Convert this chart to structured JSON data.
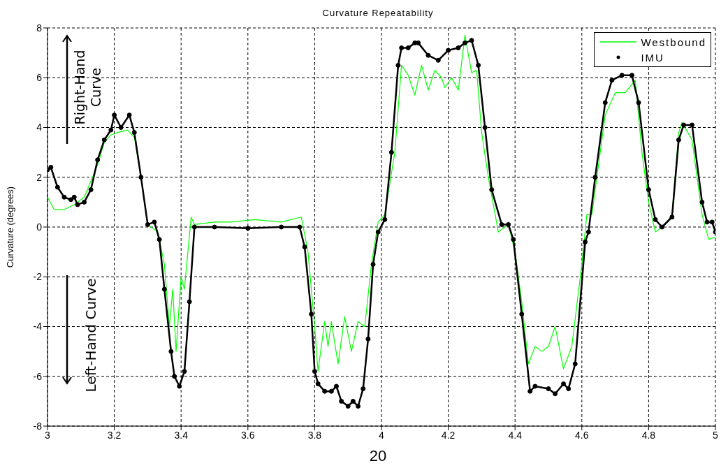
{
  "chart_data": {
    "type": "line",
    "title": "Curvature Repeatability",
    "ylabel": "Curvature (degrees)",
    "xlim": [
      3,
      5
    ],
    "xticks": [
      3,
      3.2,
      3.4,
      3.6,
      3.8,
      4,
      4.2,
      4.4,
      4.6,
      4.8,
      5
    ],
    "ylim": [
      -8,
      8
    ],
    "yticks": [
      -8,
      -6,
      -4,
      -2,
      0,
      2,
      4,
      6,
      8
    ],
    "grid": true,
    "legend": "top right",
    "line_style": "solid",
    "annotations": [
      "Right-Hand Curve",
      "Left-Hand Curve",
      "20"
    ],
    "series": [
      {
        "name": "Westbound",
        "color": "#00ff00",
        "marker": "none",
        "x": [
          3,
          3.02,
          3.05,
          3.08,
          3.11,
          3.15,
          3.17,
          3.19,
          3.21,
          3.24,
          3.26,
          3.28,
          3.3,
          3.33,
          3.35,
          3.365,
          3.375,
          3.385,
          3.4,
          3.41,
          3.43,
          3.44,
          3.5,
          3.55,
          3.62,
          3.7,
          3.76,
          3.78,
          3.8,
          3.81,
          3.83,
          3.84,
          3.85,
          3.87,
          3.89,
          3.91,
          3.93,
          3.95,
          3.97,
          3.99,
          4.01,
          4.04,
          4.06,
          4.08,
          4.1,
          4.12,
          4.14,
          4.16,
          4.18,
          4.19,
          4.21,
          4.23,
          4.25,
          4.27,
          4.285,
          4.3,
          4.32,
          4.35,
          4.38,
          4.4,
          4.42,
          4.44,
          4.46,
          4.48,
          4.5,
          4.52,
          4.545,
          4.57,
          4.6,
          4.615,
          4.63,
          4.67,
          4.7,
          4.73,
          4.76,
          4.78,
          4.8,
          4.82,
          4.85,
          4.87,
          4.89,
          4.9,
          4.93,
          4.96,
          4.98,
          5
        ],
        "values": [
          1.2,
          0.7,
          0.7,
          0.9,
          1.2,
          2.5,
          3.4,
          3.7,
          3.8,
          3.9,
          3.6,
          2,
          0.1,
          -0.2,
          -1.5,
          -4,
          -2.5,
          -5,
          -2,
          -2.5,
          0.4,
          0.1,
          0.2,
          0.2,
          0.3,
          0.2,
          0.4,
          -1,
          -4,
          -5.8,
          -3.8,
          -4.8,
          -3.8,
          -5.5,
          -3.6,
          -5,
          -3.8,
          -4,
          -1.5,
          0.2,
          0.5,
          3,
          6.5,
          6.1,
          5.3,
          6.5,
          5.5,
          6.3,
          6,
          5.6,
          6,
          5.5,
          7.7,
          6.2,
          6.3,
          3.8,
          2,
          -0.2,
          0.1,
          -1,
          -3,
          -5.5,
          -4.8,
          -5,
          -4.8,
          -4,
          -5.7,
          -4.8,
          -1.5,
          0.5,
          0.5,
          4.5,
          5.4,
          5.4,
          5.9,
          3,
          1,
          -0.2,
          0.1,
          0.5,
          3.8,
          4.2,
          3.5,
          0.5,
          -0.5,
          -0.4
        ]
      },
      {
        "name": "IMU",
        "color": "#000000",
        "marker": "circle",
        "x": [
          3,
          3.01,
          3.03,
          3.05,
          3.07,
          3.08,
          3.09,
          3.11,
          3.13,
          3.15,
          3.17,
          3.19,
          3.2,
          3.22,
          3.245,
          3.26,
          3.28,
          3.3,
          3.32,
          3.335,
          3.35,
          3.37,
          3.38,
          3.395,
          3.41,
          3.425,
          3.44,
          3.5,
          3.6,
          3.7,
          3.755,
          3.77,
          3.79,
          3.8,
          3.81,
          3.83,
          3.85,
          3.865,
          3.88,
          3.9,
          3.915,
          3.93,
          3.945,
          3.96,
          3.975,
          3.99,
          4.01,
          4.03,
          4.05,
          4.06,
          4.08,
          4.1,
          4.11,
          4.14,
          4.17,
          4.2,
          4.23,
          4.25,
          4.27,
          4.29,
          4.31,
          4.33,
          4.36,
          4.38,
          4.395,
          4.42,
          4.445,
          4.46,
          4.5,
          4.52,
          4.545,
          4.56,
          4.58,
          4.61,
          4.62,
          4.64,
          4.67,
          4.69,
          4.72,
          4.75,
          4.77,
          4.8,
          4.82,
          4.84,
          4.87,
          4.89,
          4.905,
          4.93,
          4.96,
          4.975,
          4.99,
          5
        ],
        "values": [
          2.3,
          2.4,
          1.6,
          1.2,
          1.1,
          1.2,
          0.9,
          1,
          1.5,
          2.7,
          3.5,
          3.9,
          4.5,
          4,
          4.5,
          3.8,
          2,
          0.1,
          0.2,
          -0.5,
          -2.5,
          -5,
          -6,
          -6.4,
          -5.8,
          -3,
          0,
          0,
          -0.05,
          0,
          0,
          -0.8,
          -3.5,
          -5.8,
          -6.3,
          -6.6,
          -6.6,
          -6.4,
          -7,
          -7.2,
          -7,
          -7.2,
          -6.5,
          -4.5,
          -1.5,
          -0.2,
          0.3,
          3,
          6.5,
          7.2,
          7.2,
          7.4,
          7.4,
          6.9,
          6.7,
          7.1,
          7.2,
          7.4,
          7.5,
          6.5,
          4,
          1.5,
          0.1,
          0.1,
          -0.5,
          -3.5,
          -6.6,
          -6.4,
          -6.5,
          -6.7,
          -6.3,
          -6.5,
          -5.5,
          -0.6,
          -0.2,
          2,
          5,
          5.9,
          6.1,
          6.1,
          5,
          1.5,
          0.3,
          0,
          0.4,
          3.5,
          4.1,
          4.1,
          1,
          0.2,
          0.2,
          -0.2
        ]
      }
    ]
  }
}
